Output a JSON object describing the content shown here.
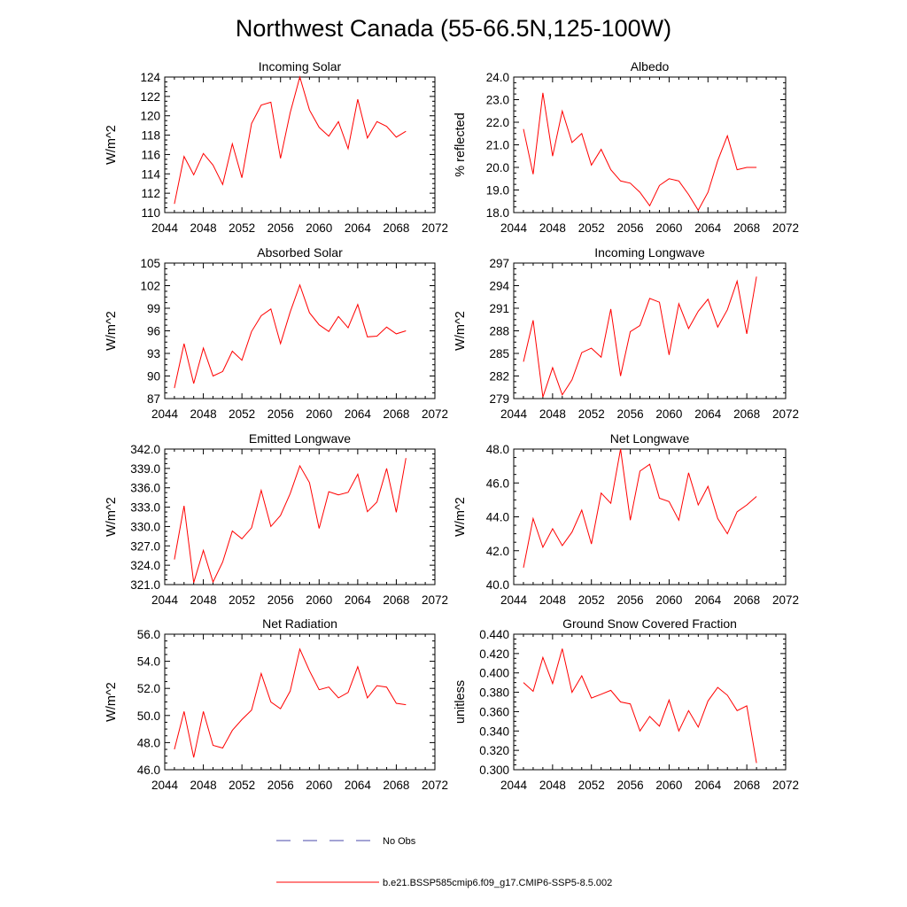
{
  "figure": {
    "title": "Northwest Canada (55-66.5N,125-100W)",
    "legend": [
      {
        "label": "No Obs",
        "color": "#4a4aaa",
        "style": "dashed"
      },
      {
        "label": "b.e21.BSSP585cmip6.f09_g17.CMIP6-SSP5-8.5.002",
        "color": "#ff0000",
        "style": "solid"
      }
    ]
  },
  "chart_data": [
    {
      "type": "line",
      "title": "Incoming Solar",
      "ylabel": "W/m^2",
      "xlim": [
        2044,
        2072
      ],
      "xticks": [
        2044,
        2048,
        2052,
        2056,
        2060,
        2064,
        2068,
        2072
      ],
      "ylim": [
        110,
        124
      ],
      "yticks": [
        110,
        112,
        114,
        116,
        118,
        120,
        122,
        124
      ],
      "ydecimals": 0,
      "x": [
        2045,
        2046,
        2047,
        2048,
        2049,
        2050,
        2051,
        2052,
        2053,
        2054,
        2055,
        2056,
        2057,
        2058,
        2059,
        2060,
        2061,
        2062,
        2063,
        2064,
        2065,
        2066,
        2067,
        2068,
        2069
      ],
      "values": [
        110.9,
        115.8,
        113.9,
        116.1,
        114.9,
        112.9,
        117.1,
        113.6,
        119.2,
        121.1,
        121.4,
        115.6,
        120.3,
        124.0,
        120.6,
        118.8,
        117.9,
        119.4,
        116.6,
        121.7,
        117.7,
        119.4,
        118.9,
        117.8,
        118.4
      ]
    },
    {
      "type": "line",
      "title": "Albedo",
      "ylabel": "% reflected",
      "xlim": [
        2044,
        2072
      ],
      "xticks": [
        2044,
        2048,
        2052,
        2056,
        2060,
        2064,
        2068,
        2072
      ],
      "ylim": [
        18,
        24
      ],
      "yticks": [
        18,
        19,
        20,
        21,
        22,
        23,
        24
      ],
      "ydecimals": 1,
      "x": [
        2045,
        2046,
        2047,
        2048,
        2049,
        2050,
        2051,
        2052,
        2053,
        2054,
        2055,
        2056,
        2057,
        2058,
        2059,
        2060,
        2061,
        2062,
        2063,
        2064,
        2065,
        2066,
        2067,
        2068,
        2069
      ],
      "values": [
        21.7,
        19.7,
        23.3,
        20.5,
        22.5,
        21.1,
        21.5,
        20.1,
        20.8,
        19.9,
        19.4,
        19.3,
        18.9,
        18.3,
        19.2,
        19.5,
        19.4,
        18.8,
        18.1,
        18.9,
        20.3,
        21.4,
        19.9,
        20.0,
        20.0
      ]
    },
    {
      "type": "line",
      "title": "Absorbed Solar",
      "ylabel": "W/m^2",
      "xlim": [
        2044,
        2072
      ],
      "xticks": [
        2044,
        2048,
        2052,
        2056,
        2060,
        2064,
        2068,
        2072
      ],
      "ylim": [
        87,
        105
      ],
      "yticks": [
        87,
        90,
        93,
        96,
        99,
        102,
        105
      ],
      "ydecimals": 0,
      "x": [
        2045,
        2046,
        2047,
        2048,
        2049,
        2050,
        2051,
        2052,
        2053,
        2054,
        2055,
        2056,
        2057,
        2058,
        2059,
        2060,
        2061,
        2062,
        2063,
        2064,
        2065,
        2066,
        2067,
        2068,
        2069
      ],
      "values": [
        88.4,
        94.3,
        89.0,
        93.7,
        90.0,
        90.6,
        93.3,
        92.1,
        95.9,
        98.0,
        98.9,
        94.3,
        98.5,
        102.1,
        98.4,
        96.8,
        95.9,
        97.9,
        96.4,
        99.5,
        95.2,
        95.3,
        96.5,
        95.6,
        96.0
      ]
    },
    {
      "type": "line",
      "title": "Incoming Longwave",
      "ylabel": "W/m^2",
      "xlim": [
        2044,
        2072
      ],
      "xticks": [
        2044,
        2048,
        2052,
        2056,
        2060,
        2064,
        2068,
        2072
      ],
      "ylim": [
        279,
        297
      ],
      "yticks": [
        279,
        282,
        285,
        288,
        291,
        294,
        297
      ],
      "ydecimals": 0,
      "x": [
        2045,
        2046,
        2047,
        2048,
        2049,
        2050,
        2051,
        2052,
        2053,
        2054,
        2055,
        2056,
        2057,
        2058,
        2059,
        2060,
        2061,
        2062,
        2063,
        2064,
        2065,
        2066,
        2067,
        2068,
        2069
      ],
      "values": [
        283.9,
        289.4,
        279.2,
        283.1,
        279.5,
        281.5,
        285.1,
        285.7,
        284.5,
        290.9,
        282.0,
        287.9,
        288.7,
        292.3,
        291.8,
        284.8,
        291.6,
        288.3,
        290.6,
        292.2,
        288.5,
        290.8,
        294.6,
        287.6,
        295.2
      ]
    },
    {
      "type": "line",
      "title": "Emitted Longwave",
      "ylabel": "W/m^2",
      "xlim": [
        2044,
        2072
      ],
      "xticks": [
        2044,
        2048,
        2052,
        2056,
        2060,
        2064,
        2068,
        2072
      ],
      "ylim": [
        321,
        342
      ],
      "yticks": [
        321,
        324,
        327,
        330,
        333,
        336,
        339,
        342
      ],
      "ydecimals": 1,
      "x": [
        2045,
        2046,
        2047,
        2048,
        2049,
        2050,
        2051,
        2052,
        2053,
        2054,
        2055,
        2056,
        2057,
        2058,
        2059,
        2060,
        2061,
        2062,
        2063,
        2064,
        2065,
        2066,
        2067,
        2068,
        2069
      ],
      "values": [
        324.9,
        333.2,
        321.3,
        326.3,
        321.4,
        324.5,
        329.3,
        328.1,
        329.8,
        335.6,
        330.0,
        331.7,
        335.1,
        339.4,
        336.8,
        329.7,
        335.4,
        334.9,
        335.3,
        338.1,
        332.3,
        333.8,
        339.0,
        332.2,
        340.6
      ]
    },
    {
      "type": "line",
      "title": "Net Longwave",
      "ylabel": "W/m^2",
      "xlim": [
        2044,
        2072
      ],
      "xticks": [
        2044,
        2048,
        2052,
        2056,
        2060,
        2064,
        2068,
        2072
      ],
      "ylim": [
        40,
        48
      ],
      "yticks": [
        40,
        42,
        44,
        46,
        48
      ],
      "ydecimals": 1,
      "x": [
        2045,
        2046,
        2047,
        2048,
        2049,
        2050,
        2051,
        2052,
        2053,
        2054,
        2055,
        2056,
        2057,
        2058,
        2059,
        2060,
        2061,
        2062,
        2063,
        2064,
        2065,
        2066,
        2067,
        2068,
        2069
      ],
      "values": [
        41.0,
        43.9,
        42.2,
        43.3,
        42.3,
        43.1,
        44.4,
        42.4,
        45.4,
        44.8,
        48.0,
        43.8,
        46.7,
        47.1,
        45.1,
        44.9,
        43.8,
        46.6,
        44.7,
        45.8,
        43.9,
        43.0,
        44.3,
        44.7,
        45.2
      ]
    },
    {
      "type": "line",
      "title": "Net Radiation",
      "ylabel": "W/m^2",
      "xlim": [
        2044,
        2072
      ],
      "xticks": [
        2044,
        2048,
        2052,
        2056,
        2060,
        2064,
        2068,
        2072
      ],
      "ylim": [
        46,
        56
      ],
      "yticks": [
        46,
        48,
        50,
        52,
        54,
        56
      ],
      "ydecimals": 1,
      "x": [
        2045,
        2046,
        2047,
        2048,
        2049,
        2050,
        2051,
        2052,
        2053,
        2054,
        2055,
        2056,
        2057,
        2058,
        2059,
        2060,
        2061,
        2062,
        2063,
        2064,
        2065,
        2066,
        2067,
        2068,
        2069
      ],
      "values": [
        47.5,
        50.3,
        46.9,
        50.3,
        47.8,
        47.6,
        48.9,
        49.7,
        50.4,
        53.1,
        51.0,
        50.5,
        51.8,
        54.9,
        53.3,
        51.9,
        52.1,
        51.3,
        51.7,
        53.6,
        51.3,
        52.2,
        52.1,
        50.9,
        50.8
      ]
    },
    {
      "type": "line",
      "title": "Ground Snow Covered Fraction",
      "ylabel": "unitless",
      "xlim": [
        2044,
        2072
      ],
      "xticks": [
        2044,
        2048,
        2052,
        2056,
        2060,
        2064,
        2068,
        2072
      ],
      "ylim": [
        0.3,
        0.44
      ],
      "yticks": [
        0.3,
        0.32,
        0.34,
        0.36,
        0.38,
        0.4,
        0.42,
        0.44
      ],
      "ydecimals": 3,
      "x": [
        2045,
        2046,
        2047,
        2048,
        2049,
        2050,
        2051,
        2052,
        2053,
        2054,
        2055,
        2056,
        2057,
        2058,
        2059,
        2060,
        2061,
        2062,
        2063,
        2064,
        2065,
        2066,
        2067,
        2068,
        2069
      ],
      "values": [
        0.39,
        0.381,
        0.416,
        0.389,
        0.425,
        0.38,
        0.397,
        0.374,
        0.378,
        0.382,
        0.37,
        0.368,
        0.34,
        0.355,
        0.345,
        0.372,
        0.34,
        0.361,
        0.344,
        0.371,
        0.385,
        0.377,
        0.361,
        0.366,
        0.307
      ]
    }
  ]
}
